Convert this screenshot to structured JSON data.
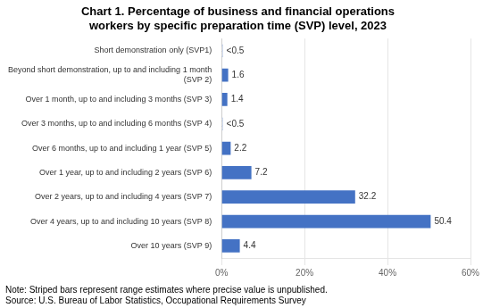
{
  "chart_data": {
    "type": "bar",
    "orientation": "horizontal",
    "title": "Chart 1. Percentage of business and financial operations\nworkers by specific preparation time (SVP) level, 2023",
    "categories": [
      "Short demonstration only (SVP1)",
      "Beyond short demonstration, up to and including 1 month\n(SVP 2)",
      "Over 1 month, up to and including 3 months (SVP 3)",
      "Over 3 months, up to and including 6 months (SVP 4)",
      "Over 6 months, up to and including 1 year (SVP 5)",
      "Over 1 year, up to and including 2 years (SVP 6)",
      "Over 2 years, up to and including 4 years (SVP 7)",
      "Over 4 years, up to and including 10 years (SVP 8)",
      "Over 10 years (SVP 9)"
    ],
    "values": [
      0.3,
      1.6,
      1.4,
      0.3,
      2.2,
      7.2,
      32.2,
      50.4,
      4.4
    ],
    "value_labels": [
      "<0.5",
      "1.6",
      "1.4",
      "<0.5",
      "2.2",
      "7.2",
      "32.2",
      "50.4",
      "4.4"
    ],
    "data_labels": true,
    "color": "#4472C4",
    "colors": [
      "#ffffff",
      "#4472C4",
      "#4472C4",
      "#ffffff",
      "#4472C4",
      "#4472C4",
      "#4472C4",
      "#4472C4",
      "#4472C4"
    ],
    "xlim": [
      0,
      60
    ],
    "xticks": [
      {
        "value": 0,
        "label": "0%"
      },
      {
        "value": 20,
        "label": "20%"
      },
      {
        "value": 40,
        "label": "40%"
      },
      {
        "value": 60,
        "label": "60%"
      }
    ],
    "grid": true,
    "annotations": [
      "Note: Striped bars represent range estimates where precise value is unpublished.",
      "Source: U.S. Bureau of Labor Statistics, Occupational Requirements Survey"
    ]
  }
}
